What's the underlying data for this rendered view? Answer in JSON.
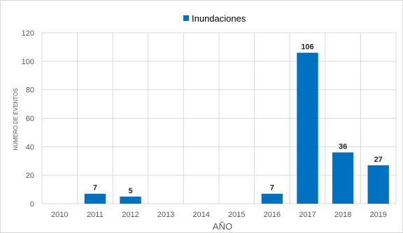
{
  "chart_data": {
    "type": "bar",
    "categories": [
      "2010",
      "2011",
      "2012",
      "2013",
      "2014",
      "2015",
      "2016",
      "2017",
      "2018",
      "2019"
    ],
    "series": [
      {
        "name": "Inundaciones",
        "values": [
          0,
          7,
          5,
          0,
          0,
          0,
          7,
          106,
          36,
          27
        ],
        "color": "#0070C0"
      }
    ],
    "data_labels": [
      "",
      "7",
      "5",
      "",
      "",
      "",
      "7",
      "106",
      "36",
      "27"
    ],
    "title": "",
    "xlabel": "AÑO",
    "ylabel": "NÚMERO DE EVENTOS",
    "ylim": [
      0,
      120
    ],
    "yticks": [
      "0",
      "20",
      "40",
      "60",
      "80",
      "100",
      "120"
    ],
    "grid": "vertical and horizontal",
    "legend_position": "top-center",
    "colors": {
      "bar": "#0070C0",
      "grid": "#d9d9d9",
      "tick_text": "#595959"
    }
  }
}
